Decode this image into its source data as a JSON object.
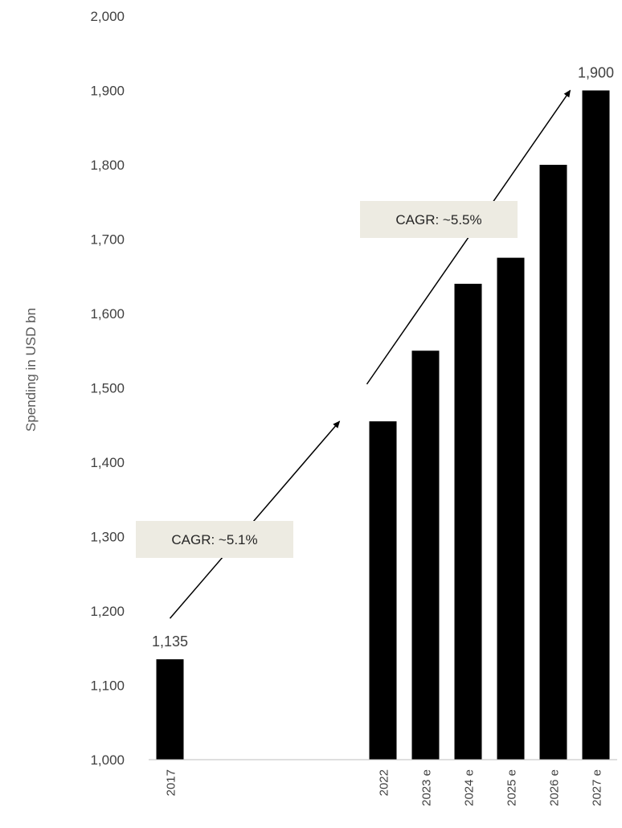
{
  "chart_data": {
    "type": "bar",
    "title": "",
    "xlabel": "",
    "ylabel": "Spending  in USD bn",
    "ylim": [
      1000,
      2000
    ],
    "yticks": [
      1000,
      1100,
      1200,
      1300,
      1400,
      1500,
      1600,
      1700,
      1800,
      1900,
      2000
    ],
    "ytick_labels": [
      "1,000",
      "1,100",
      "1,200",
      "1,300",
      "1,400",
      "1,500",
      "1,600",
      "1,700",
      "1,800",
      "1,900",
      "2,000"
    ],
    "categories": [
      "2017",
      "",
      "",
      "",
      "",
      "2022",
      "2023 e",
      "2024 e",
      "2025 e",
      "2026 e",
      "2027 e"
    ],
    "values": [
      1135,
      null,
      null,
      null,
      null,
      1455,
      1550,
      1640,
      1675,
      1800,
      1900
    ],
    "data_labels": [
      {
        "category": "2017",
        "text": "1,135"
      },
      {
        "category": "2027 e",
        "text": "1,900"
      }
    ],
    "bar_color": "#000000",
    "grid": false,
    "annotations": [
      {
        "text": "CAGR: ~5.1%",
        "from": {
          "x": "2017",
          "y": 1190
        },
        "to": {
          "x": "2022",
          "y": 1455
        }
      },
      {
        "text": "CAGR: ~5.5%",
        "from": {
          "x": "2022",
          "y": 1505
        },
        "to": {
          "x": "2027 e",
          "y": 1900
        }
      }
    ],
    "annotation_box_color": "#edebe2"
  }
}
